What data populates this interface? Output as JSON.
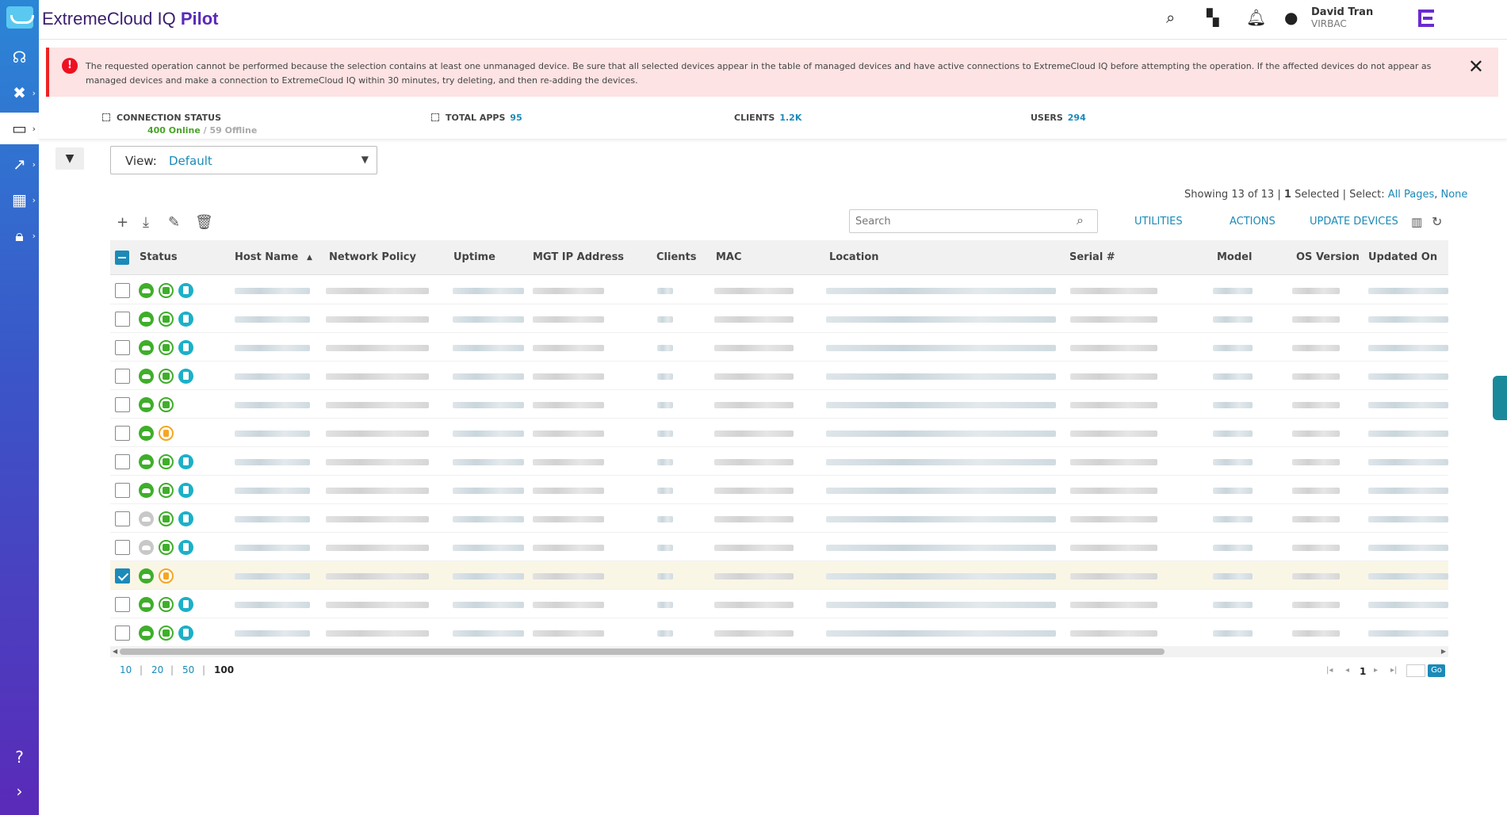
{
  "app": {
    "brand_prefix": "ExtremeCloud",
    "brand_mid": " IQ ",
    "brand_suffix": "Pilot"
  },
  "user": {
    "name": "David Tran",
    "org": "VIRBAC"
  },
  "error": {
    "message": "The requested operation cannot be performed because the selection contains at least one unmanaged device. Be sure that all selected devices appear in the table of managed devices and have active connections to ExtremeCloud IQ before attempting the operation. If the affected devices do not appear as managed devices and make a connection to ExtremeCloud IQ within 30 minutes, try deleting, and then re-adding the devices.",
    "icon": "!",
    "close": "✕",
    "color": "#e22222"
  },
  "stats": {
    "connection_label": "CONNECTION STATUS",
    "online": "400 Online",
    "sep": " / ",
    "offline": "59 Offline",
    "apps_label": "TOTAL APPS",
    "apps_value": "95",
    "clients_label": "CLIENTS",
    "clients_value": "1.2K",
    "users_label": "USERS",
    "users_value": "294"
  },
  "view": {
    "label": "View:",
    "value": "Default"
  },
  "showing": {
    "text": "Showing 13 of 13",
    "sep": "|",
    "selected_count": "1",
    "selected_label": "Selected",
    "select_label": "Select:",
    "all_pages": "All Pages",
    "comma": ",",
    "none": "None"
  },
  "toolbar": {
    "search_placeholder": "Search",
    "utilities": "UTILITIES",
    "actions": "ACTIONS",
    "update_devices": "UPDATE DEVICES"
  },
  "columns": [
    "Status",
    "Host Name",
    "Network Policy",
    "Uptime",
    "MGT IP Address",
    "Clients",
    "MAC",
    "Location",
    "Serial #",
    "Model",
    "OS Version",
    "Updated On"
  ],
  "rows": [
    {
      "checked": false,
      "cloud": "on",
      "state": "ok",
      "doc": true
    },
    {
      "checked": false,
      "cloud": "on",
      "state": "ok",
      "doc": true
    },
    {
      "checked": false,
      "cloud": "on",
      "state": "ok",
      "doc": true
    },
    {
      "checked": false,
      "cloud": "on",
      "state": "ok",
      "doc": true
    },
    {
      "checked": false,
      "cloud": "on",
      "state": "ok",
      "doc": false
    },
    {
      "checked": false,
      "cloud": "on",
      "state": "warn",
      "doc": false
    },
    {
      "checked": false,
      "cloud": "on",
      "state": "ok",
      "doc": true
    },
    {
      "checked": false,
      "cloud": "on",
      "state": "ok",
      "doc": true
    },
    {
      "checked": false,
      "cloud": "off",
      "state": "ok",
      "doc": true
    },
    {
      "checked": false,
      "cloud": "off",
      "state": "ok",
      "doc": true
    },
    {
      "checked": true,
      "cloud": "on",
      "state": "warn",
      "doc": false
    },
    {
      "checked": false,
      "cloud": "on",
      "state": "ok",
      "doc": true
    },
    {
      "checked": false,
      "cloud": "on",
      "state": "ok",
      "doc": true
    }
  ],
  "pagination": {
    "sizes": [
      "10",
      "20",
      "50",
      "100"
    ],
    "current_size": "100",
    "current_page": "1",
    "go": "Go"
  },
  "colors": {
    "accent": "#1b8ab8",
    "online": "#4aa32a",
    "brand": "#5a2ab8"
  }
}
